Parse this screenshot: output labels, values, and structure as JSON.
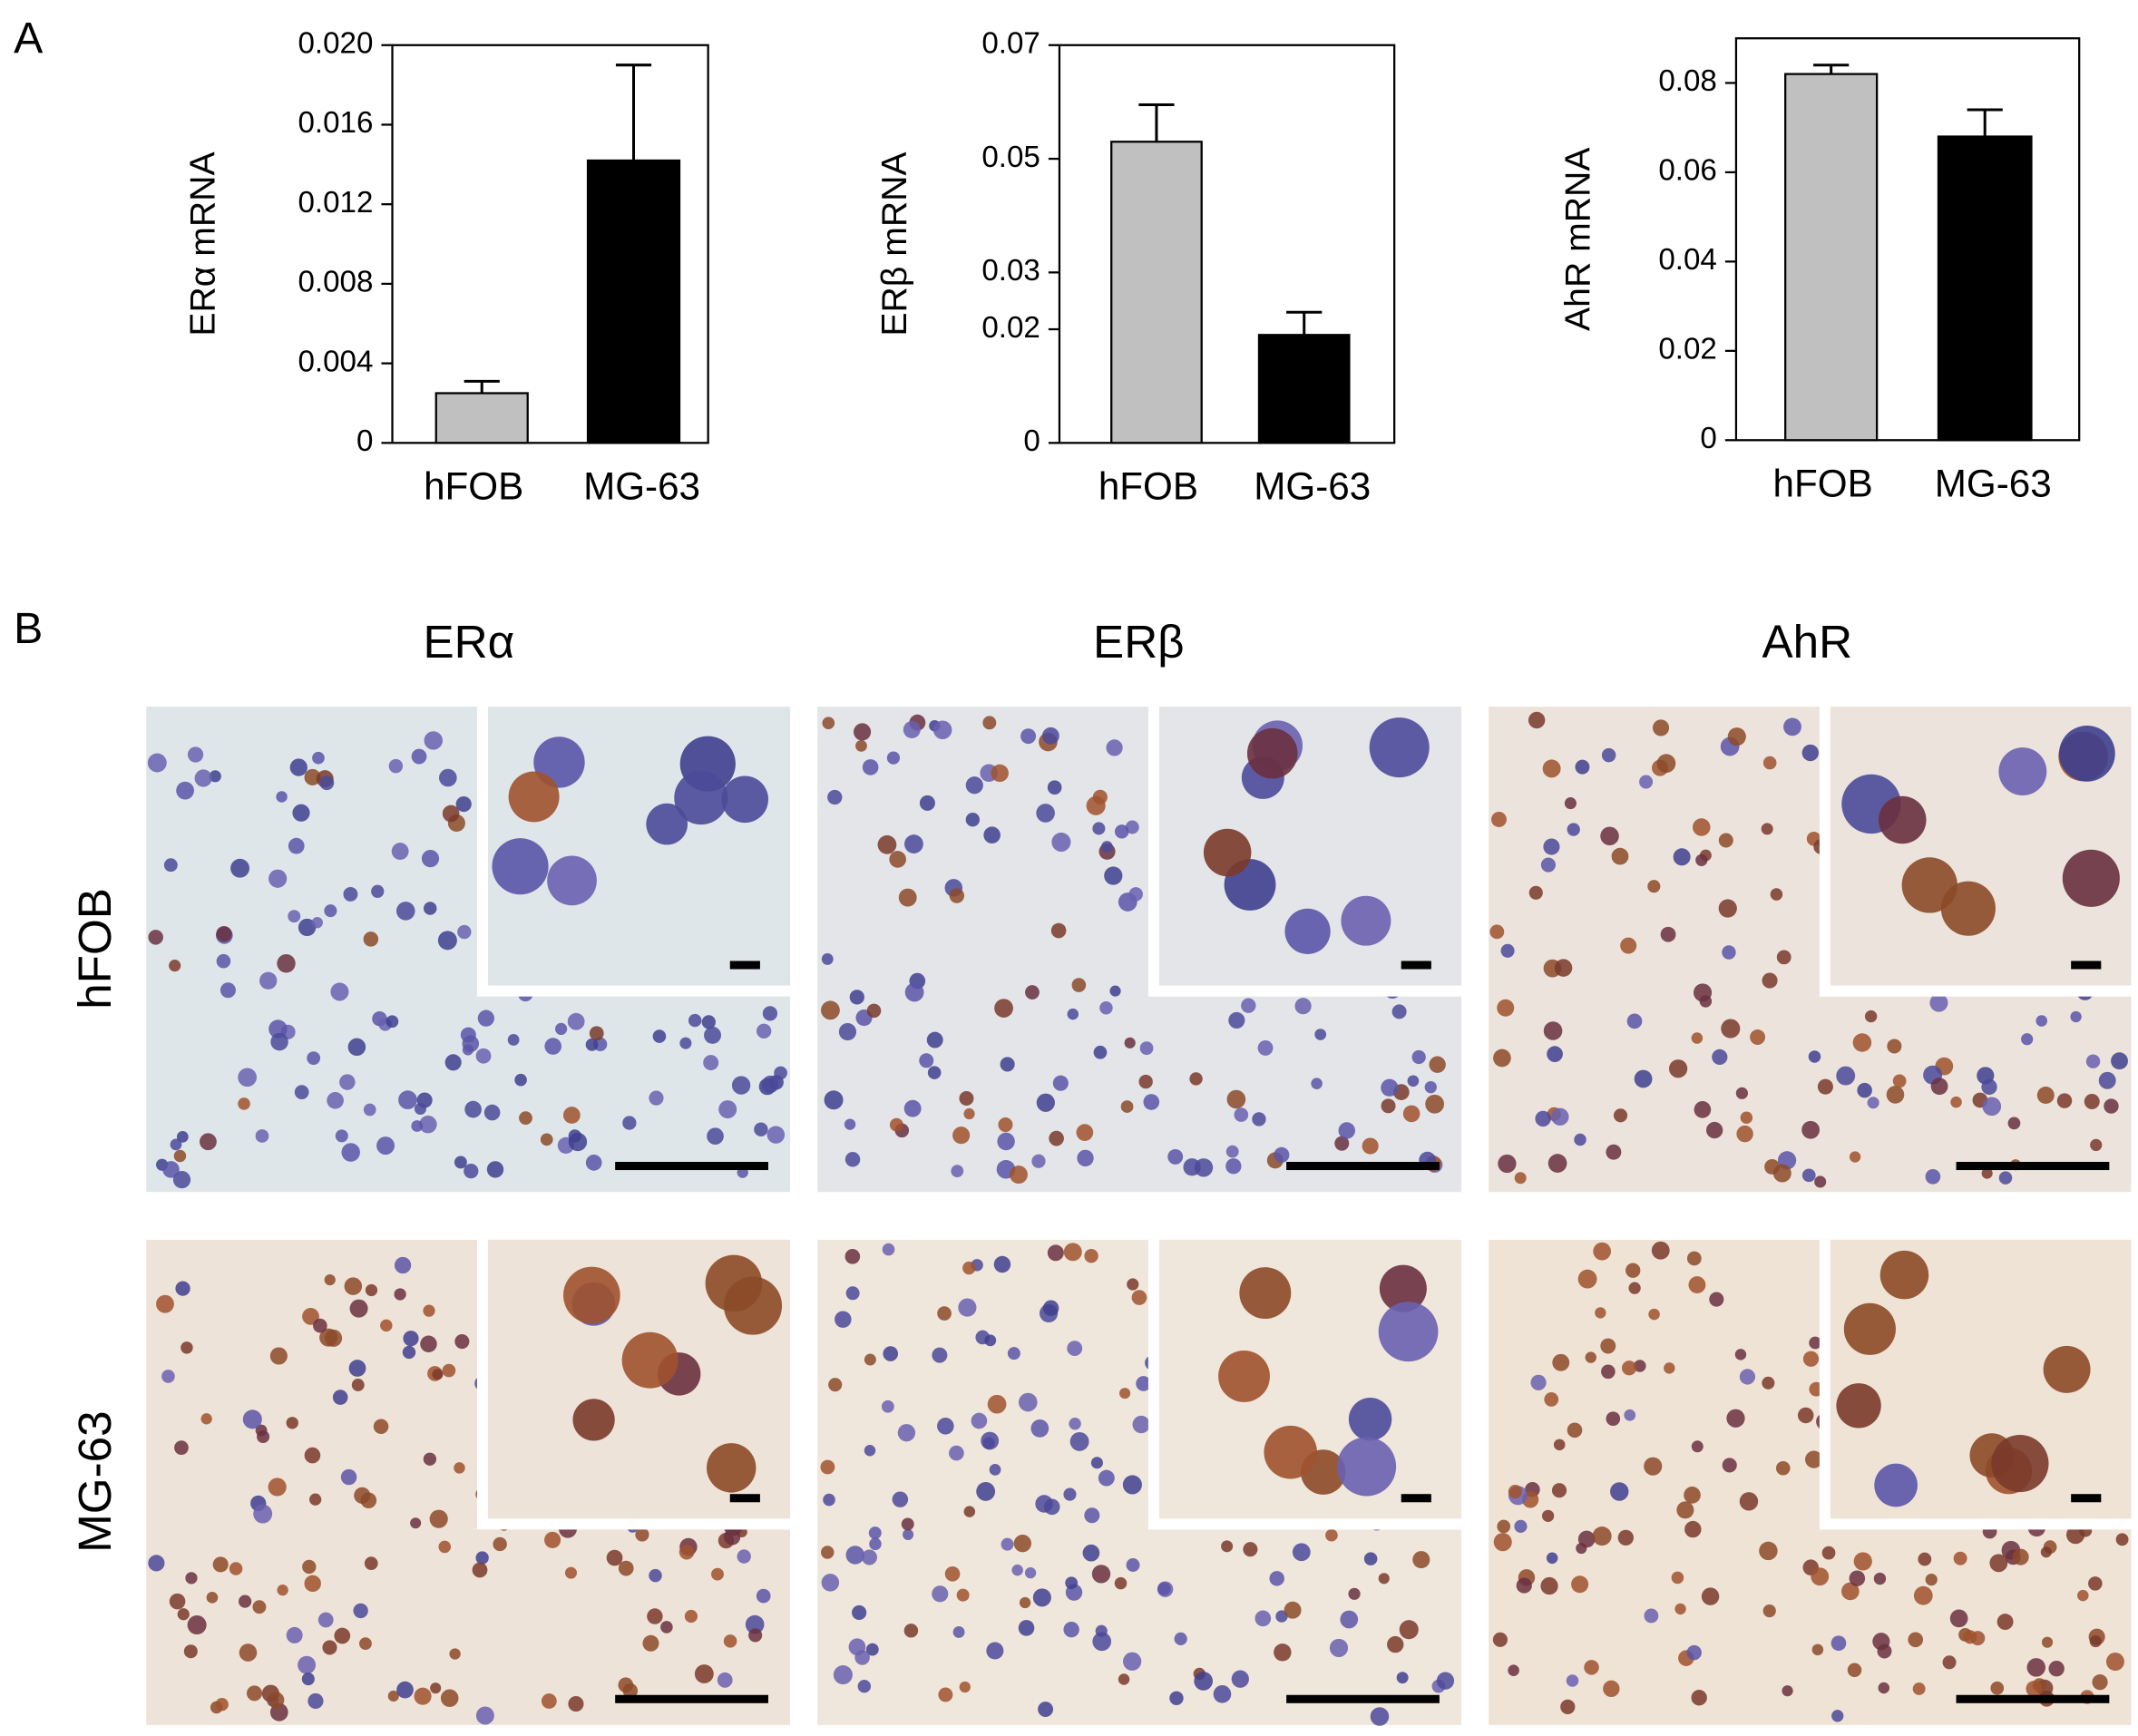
{
  "chart_data": [
    {
      "type": "bar",
      "ylabel": "ERα mRNA",
      "categories": [
        "hFOB",
        "MG-63"
      ],
      "values": [
        0.0025,
        0.0142
      ],
      "errors": [
        0.0006,
        0.0048
      ],
      "colors": [
        "#c0c0c0",
        "#000000"
      ],
      "ylim": [
        0,
        0.02
      ],
      "yticks": [
        0,
        0.004,
        0.008,
        0.012,
        0.016,
        {
          "value": 0.02,
          "label": "0.020"
        }
      ]
    },
    {
      "type": "bar",
      "ylabel": "ERβ mRNA",
      "categories": [
        "hFOB",
        "MG-63"
      ],
      "values": [
        0.053,
        0.019
      ],
      "errors": [
        0.0065,
        0.004
      ],
      "colors": [
        "#c0c0c0",
        "#000000"
      ],
      "ylim": [
        0,
        0.07
      ],
      "yticks": [
        0,
        0.02,
        0.03,
        0.05,
        0.07
      ]
    },
    {
      "type": "bar",
      "ylabel": "AhR mRNA",
      "categories": [
        "hFOB",
        "MG-63"
      ],
      "values": [
        0.082,
        0.068
      ],
      "errors": [
        0.002,
        0.006
      ],
      "colors": [
        "#c0c0c0",
        "#000000"
      ],
      "ylim": [
        0,
        0.09
      ],
      "yticks": [
        0,
        0.02,
        0.04,
        0.06,
        0.08
      ]
    }
  ],
  "panel_labels": [
    "A",
    "B"
  ],
  "micrographs": {
    "columns": [
      "ERα",
      "ERβ",
      "AhR"
    ],
    "rows": [
      "hFOB",
      "MG-63"
    ]
  }
}
